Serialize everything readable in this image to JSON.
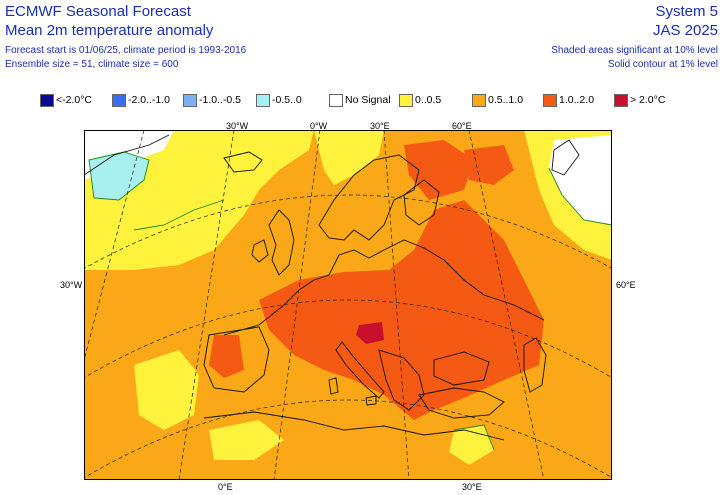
{
  "header": {
    "title": "ECMWF Seasonal Forecast",
    "subtitle": "Mean 2m temperature anomaly",
    "forecast_start": "Forecast start is 01/06/25, climate period is 1993-2016",
    "ensemble": "Ensemble size = 51, climate size = 600",
    "system": "System 5",
    "period": "JAS 2025",
    "shading_note": "Shaded areas significant at 10% level",
    "contour_note": "Solid contour at 1% level"
  },
  "legend": [
    {
      "label": "<-2.0°C",
      "color": "#0a0a96"
    },
    {
      "label": "-2.0..-1.0",
      "color": "#3c6cf0"
    },
    {
      "label": "-1.0..-0.5",
      "color": "#7cb0f0"
    },
    {
      "label": "-0.5..0",
      "color": "#a8f0f0"
    },
    {
      "label": "No Signal",
      "color": "#ffffff"
    },
    {
      "label": "0..0.5",
      "color": "#fff23c"
    },
    {
      "label": "0.5..1.0",
      "color": "#fba818"
    },
    {
      "label": "1.0..2.0",
      "color": "#f55a14"
    },
    {
      "label": "> 2.0°C",
      "color": "#c8102e"
    }
  ],
  "gridlabels": {
    "top_30w": "30°W",
    "top_0w": "0°W",
    "top_30e": "30°E",
    "top_60e": "60°E",
    "left_30w": "30°W",
    "right_60e": "60°E",
    "bottom_0e": "0°E",
    "bottom_30e": "30°E"
  },
  "map": {
    "region": "Europe and North Atlantic",
    "colors": {
      "weak_warm": "#fff23c",
      "warm": "#fba818",
      "strong_warm": "#f55a14",
      "very_strong_warm": "#c8102e",
      "slight_cool": "#a8f0f0",
      "no_signal": "#ffffff"
    }
  }
}
